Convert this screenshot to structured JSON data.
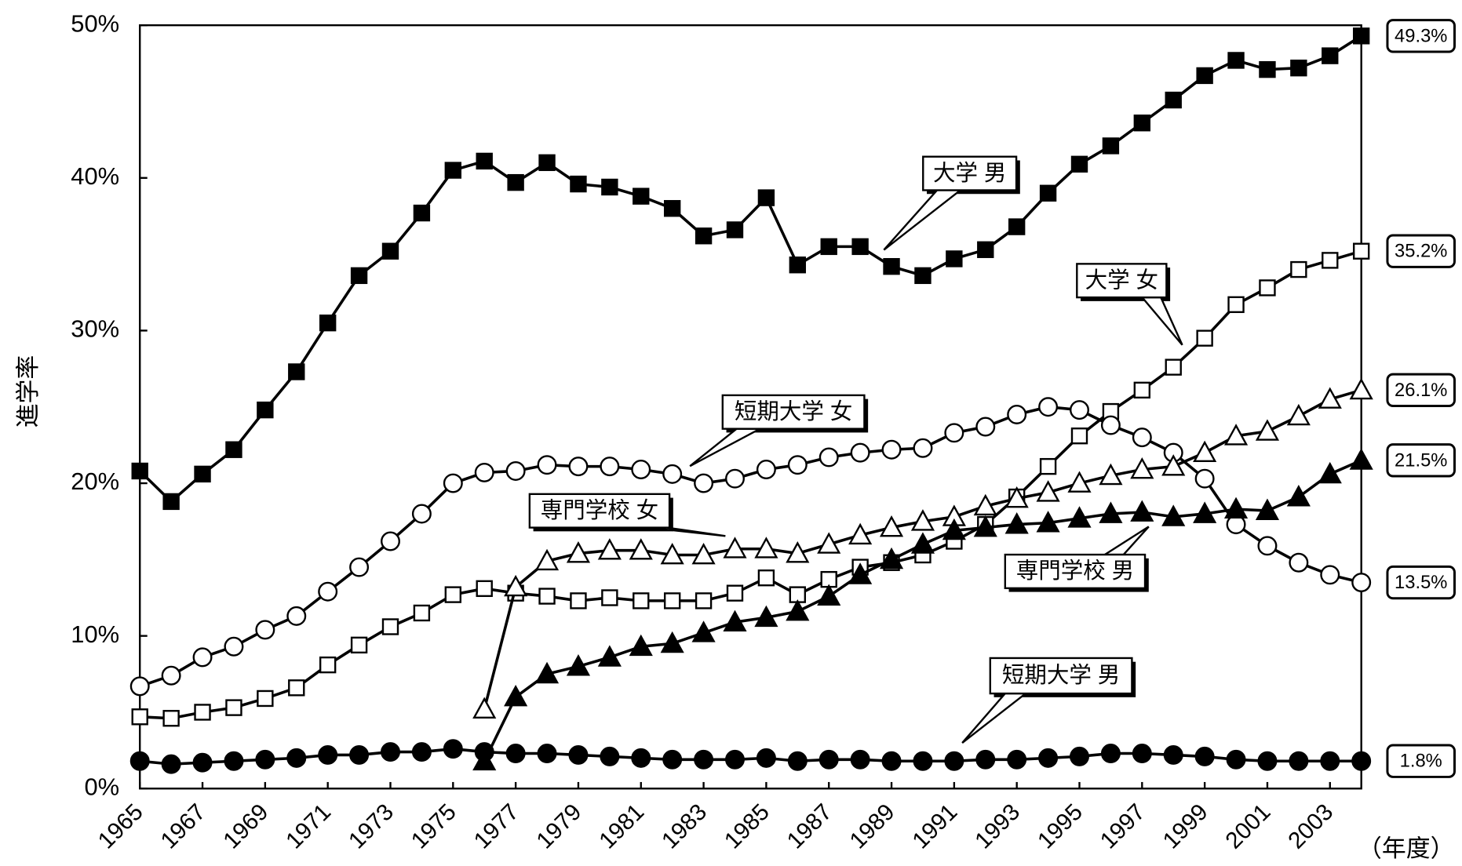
{
  "chart_data": {
    "type": "line",
    "y_label": "進学率",
    "x_label": "（年度）",
    "xlim": [
      1965,
      2004
    ],
    "xticks": [
      1965,
      1967,
      1969,
      1971,
      1973,
      1975,
      1977,
      1979,
      1981,
      1983,
      1985,
      1987,
      1989,
      1991,
      1993,
      1995,
      1997,
      1999,
      2001,
      2003
    ],
    "ylim": [
      0,
      50
    ],
    "yticks": [
      {
        "value": 0,
        "label": "0%"
      },
      {
        "value": 10,
        "label": "10%"
      },
      {
        "value": 20,
        "label": "20%"
      },
      {
        "value": 30,
        "label": "30%"
      },
      {
        "value": 40,
        "label": "40%"
      },
      {
        "value": 50,
        "label": "50%"
      }
    ],
    "x": [
      1965,
      1966,
      1967,
      1968,
      1969,
      1970,
      1971,
      1972,
      1973,
      1974,
      1975,
      1976,
      1977,
      1978,
      1979,
      1980,
      1981,
      1982,
      1983,
      1984,
      1985,
      1986,
      1987,
      1988,
      1989,
      1990,
      1991,
      1992,
      1993,
      1994,
      1995,
      1996,
      1997,
      1998,
      1999,
      2000,
      2001,
      2002,
      2003,
      2004
    ],
    "series": [
      {
        "name": "大学 男",
        "color": "#000000",
        "marker": "square",
        "marker_fill": "#000000",
        "end_label": "49.3%",
        "values": [
          20.8,
          18.8,
          20.6,
          22.2,
          24.8,
          27.3,
          30.5,
          33.6,
          35.2,
          37.7,
          40.5,
          41.1,
          39.7,
          41.0,
          39.6,
          39.4,
          38.8,
          38.0,
          36.2,
          36.6,
          38.7,
          34.3,
          35.5,
          35.5,
          34.2,
          33.6,
          34.7,
          35.3,
          36.8,
          39.0,
          40.9,
          42.1,
          43.6,
          45.1,
          46.7,
          47.7,
          47.1,
          47.2,
          48.0,
          49.3
        ]
      },
      {
        "name": "大学 女",
        "color": "#000000",
        "marker": "square",
        "marker_fill": "#ffffff",
        "end_label": "35.2%",
        "values": [
          4.7,
          4.6,
          5.0,
          5.3,
          5.9,
          6.6,
          8.1,
          9.4,
          10.6,
          11.5,
          12.7,
          13.1,
          12.8,
          12.6,
          12.3,
          12.5,
          12.3,
          12.3,
          12.3,
          12.8,
          13.8,
          12.7,
          13.7,
          14.5,
          14.8,
          15.3,
          16.2,
          17.3,
          19.1,
          21.1,
          23.1,
          24.7,
          26.1,
          27.6,
          29.5,
          31.7,
          32.8,
          34.0,
          34.6,
          35.2
        ]
      },
      {
        "name": "短期大学 女",
        "color": "#000000",
        "marker": "circle",
        "marker_fill": "#ffffff",
        "end_label": "13.5%",
        "values": [
          6.7,
          7.4,
          8.6,
          9.3,
          10.4,
          11.3,
          12.9,
          14.5,
          16.2,
          18.0,
          20.0,
          20.7,
          20.8,
          21.2,
          21.1,
          21.1,
          20.9,
          20.6,
          20.0,
          20.3,
          20.9,
          21.2,
          21.7,
          22.0,
          22.2,
          22.3,
          23.3,
          23.7,
          24.5,
          25.0,
          24.8,
          23.8,
          23.0,
          22.0,
          20.3,
          17.3,
          15.9,
          14.8,
          14.0,
          13.5
        ]
      },
      {
        "name": "短期大学 男",
        "color": "#000000",
        "marker": "circle",
        "marker_fill": "#000000",
        "end_label": "1.8%",
        "values": [
          1.8,
          1.6,
          1.7,
          1.8,
          1.9,
          2.0,
          2.2,
          2.2,
          2.4,
          2.4,
          2.6,
          2.4,
          2.3,
          2.3,
          2.2,
          2.1,
          2.0,
          1.9,
          1.9,
          1.9,
          2.0,
          1.8,
          1.9,
          1.9,
          1.8,
          1.8,
          1.8,
          1.9,
          1.9,
          2.0,
          2.1,
          2.3,
          2.3,
          2.2,
          2.1,
          1.9,
          1.8,
          1.8,
          1.8,
          1.8
        ]
      },
      {
        "name": "専門学校 女",
        "color": "#000000",
        "marker": "triangle",
        "marker_fill": "#ffffff",
        "end_label": "26.1%",
        "values": [
          null,
          null,
          null,
          null,
          null,
          null,
          null,
          null,
          null,
          null,
          null,
          5.2,
          13.2,
          14.9,
          15.4,
          15.6,
          15.6,
          15.3,
          15.3,
          15.7,
          15.7,
          15.4,
          16.0,
          16.6,
          17.1,
          17.5,
          17.8,
          18.5,
          19.0,
          19.4,
          20.0,
          20.5,
          20.9,
          21.1,
          22.0,
          23.1,
          23.4,
          24.4,
          25.5,
          26.1
        ]
      },
      {
        "name": "専門学校 男",
        "color": "#000000",
        "marker": "triangle",
        "marker_fill": "#000000",
        "end_label": "21.5%",
        "values": [
          null,
          null,
          null,
          null,
          null,
          null,
          null,
          null,
          null,
          null,
          null,
          1.8,
          6.0,
          7.5,
          8.0,
          8.6,
          9.3,
          9.5,
          10.2,
          10.9,
          11.2,
          11.6,
          12.6,
          14.0,
          15.0,
          16.0,
          16.9,
          17.1,
          17.3,
          17.4,
          17.7,
          18.0,
          18.1,
          17.8,
          18.0,
          18.3,
          18.2,
          19.1,
          20.6,
          21.5
        ]
      }
    ]
  }
}
